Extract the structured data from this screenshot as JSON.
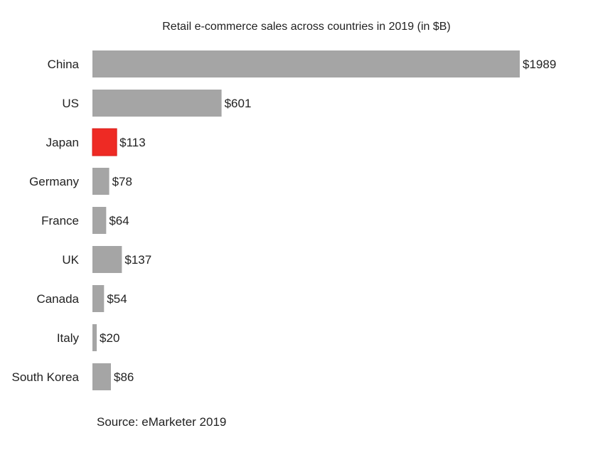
{
  "chart_data": {
    "type": "bar",
    "orientation": "horizontal",
    "title": "Retail e-commerce sales across countries in 2019 (in $B)",
    "categories": [
      "China",
      "US",
      "Japan",
      "Germany",
      "France",
      "UK",
      "Canada",
      "Italy",
      "South Korea"
    ],
    "values": [
      1989,
      601,
      113,
      78,
      64,
      137,
      54,
      20,
      86
    ],
    "data_labels": [
      "$1989",
      "$601",
      "$113",
      "$78",
      "$64",
      "$137",
      "$54",
      "$20",
      "$86"
    ],
    "highlighted": "Japan",
    "xlim": [
      0,
      1989
    ],
    "grid": false,
    "axes_visible": false,
    "colors": {
      "default": "#a5a5a5",
      "highlight": "#ee2a24"
    },
    "source": "Source: eMarketer 2019"
  }
}
